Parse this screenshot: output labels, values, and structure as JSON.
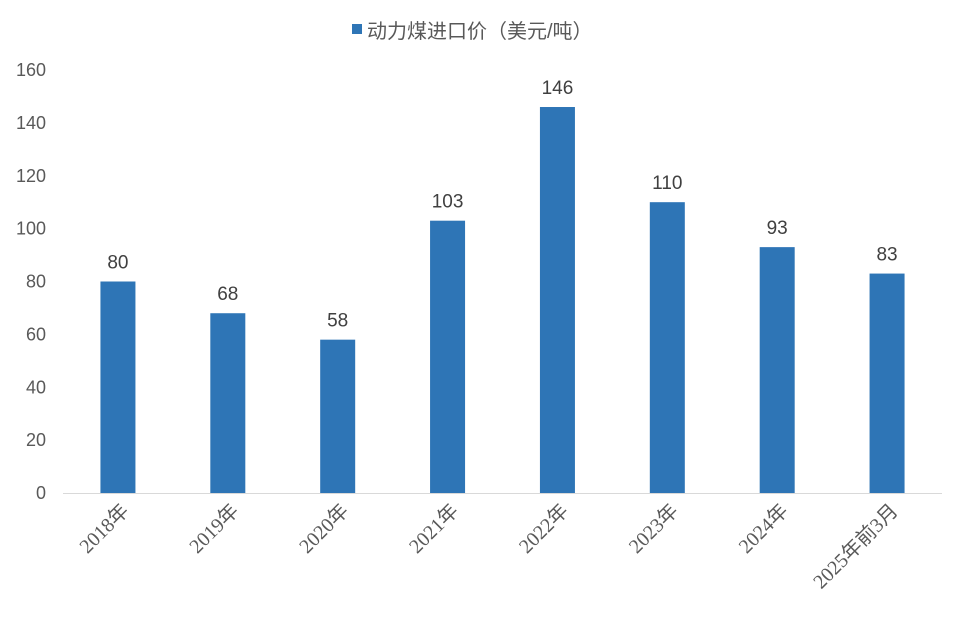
{
  "chart_data": {
    "type": "bar",
    "categories": [
      "2018年",
      "2019年",
      "2020年",
      "2021年",
      "2022年",
      "2023年",
      "2024年",
      "2025年前3月"
    ],
    "series": [
      {
        "name": "动力煤进口价（美元/吨）",
        "values": [
          80,
          68,
          58,
          103,
          146,
          110,
          93,
          83
        ],
        "color": "#2E75B6"
      }
    ],
    "ylim": [
      0,
      160
    ],
    "yticks": [
      0,
      20,
      40,
      60,
      80,
      100,
      120,
      140,
      160
    ],
    "grid": false,
    "legend": "top-center",
    "data_labels": true
  }
}
